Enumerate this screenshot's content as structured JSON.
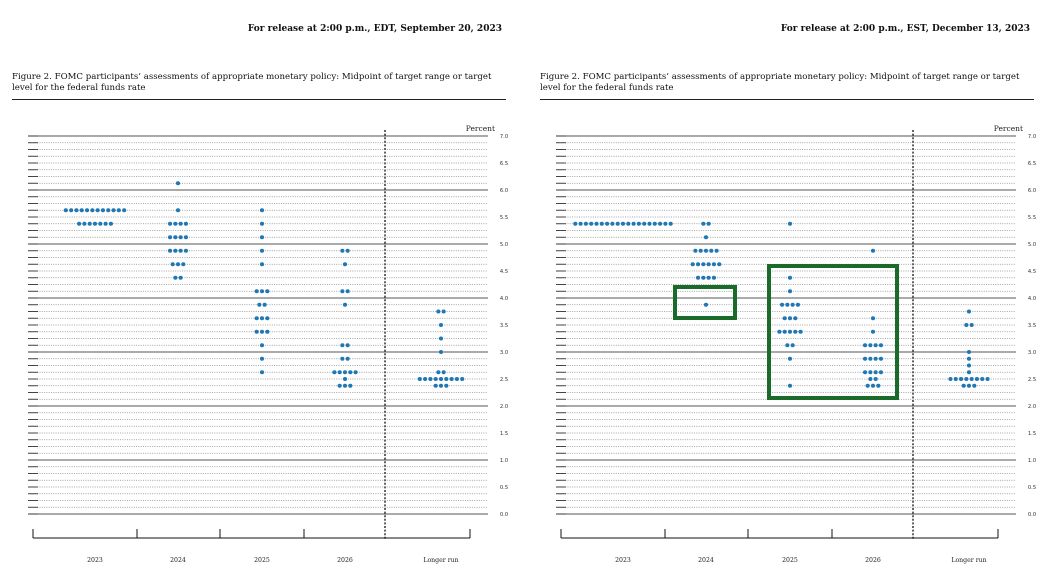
{
  "chart_data": [
    {
      "type": "scatter",
      "release_line": "For release at 2:00 p.m., EDT, September 20, 2023",
      "title": "Figure 2.  FOMC participants’ assessments of appropriate monetary policy: Midpoint of target range or target level for the federal funds rate",
      "ylabel": "Percent",
      "ylim": [
        0,
        7
      ],
      "y_ticks": [
        "0.0",
        "0.5",
        "1.0",
        "1.5",
        "2.0",
        "2.5",
        "3.0",
        "3.5",
        "4.0",
        "4.5",
        "5.0",
        "5.5",
        "6.0",
        "6.5",
        "7.0"
      ],
      "categories": [
        "2023",
        "2024",
        "2025",
        "2026",
        "Longer run"
      ],
      "dot_color": "#1f77b4",
      "dots": [
        {
          "category": "2023",
          "points": [
            {
              "y": 5.625,
              "count": 12
            },
            {
              "y": 5.375,
              "count": 7
            }
          ]
        },
        {
          "category": "2024",
          "points": [
            {
              "y": 6.125,
              "count": 1
            },
            {
              "y": 5.625,
              "count": 1
            },
            {
              "y": 5.375,
              "count": 4
            },
            {
              "y": 5.125,
              "count": 4
            },
            {
              "y": 4.875,
              "count": 4
            },
            {
              "y": 4.625,
              "count": 3
            },
            {
              "y": 4.375,
              "count": 2
            }
          ]
        },
        {
          "category": "2025",
          "points": [
            {
              "y": 5.625,
              "count": 1
            },
            {
              "y": 5.375,
              "count": 1
            },
            {
              "y": 5.125,
              "count": 1
            },
            {
              "y": 4.875,
              "count": 1
            },
            {
              "y": 4.625,
              "count": 1
            },
            {
              "y": 4.125,
              "count": 3
            },
            {
              "y": 3.875,
              "count": 2
            },
            {
              "y": 3.625,
              "count": 3
            },
            {
              "y": 3.375,
              "count": 3
            },
            {
              "y": 3.125,
              "count": 1
            },
            {
              "y": 2.875,
              "count": 1
            },
            {
              "y": 2.625,
              "count": 1
            }
          ]
        },
        {
          "category": "2026",
          "points": [
            {
              "y": 4.875,
              "count": 2
            },
            {
              "y": 4.625,
              "count": 1
            },
            {
              "y": 4.125,
              "count": 2
            },
            {
              "y": 3.875,
              "count": 1
            },
            {
              "y": 3.125,
              "count": 2
            },
            {
              "y": 2.875,
              "count": 2
            },
            {
              "y": 2.625,
              "count": 5
            },
            {
              "y": 2.5,
              "count": 1
            },
            {
              "y": 2.375,
              "count": 3
            }
          ]
        },
        {
          "category": "Longer run",
          "points": [
            {
              "y": 3.75,
              "count": 2
            },
            {
              "y": 3.5,
              "count": 1
            },
            {
              "y": 3.25,
              "count": 1
            },
            {
              "y": 3.0,
              "count": 1
            },
            {
              "y": 2.625,
              "count": 2
            },
            {
              "y": 2.5,
              "count": 9
            },
            {
              "y": 2.375,
              "count": 3
            }
          ]
        }
      ]
    },
    {
      "type": "scatter",
      "release_line": "For release at 2:00 p.m., EST, December 13, 2023",
      "title": "Figure 2.  FOMC participants’ assessments of appropriate monetary policy: Midpoint of target range or target level for the federal funds rate",
      "ylabel": "Percent",
      "ylim": [
        0,
        7
      ],
      "y_ticks": [
        "0.0",
        "0.5",
        "1.0",
        "1.5",
        "2.0",
        "2.5",
        "3.0",
        "3.5",
        "4.0",
        "4.5",
        "5.0",
        "5.5",
        "6.0",
        "6.5",
        "7.0"
      ],
      "categories": [
        "2023",
        "2024",
        "2025",
        "2026",
        "Longer run"
      ],
      "dot_color": "#1f77b4",
      "highlight_color": "#1a6b2a",
      "dots": [
        {
          "category": "2023",
          "points": [
            {
              "y": 5.375,
              "count": 19
            }
          ]
        },
        {
          "category": "2024",
          "points": [
            {
              "y": 5.375,
              "count": 2
            },
            {
              "y": 5.125,
              "count": 1
            },
            {
              "y": 4.875,
              "count": 5
            },
            {
              "y": 4.625,
              "count": 6
            },
            {
              "y": 4.375,
              "count": 4
            },
            {
              "y": 3.875,
              "count": 1
            }
          ]
        },
        {
          "category": "2025",
          "points": [
            {
              "y": 5.375,
              "count": 1
            },
            {
              "y": 4.375,
              "count": 1
            },
            {
              "y": 4.125,
              "count": 1
            },
            {
              "y": 3.875,
              "count": 4
            },
            {
              "y": 3.625,
              "count": 3
            },
            {
              "y": 3.375,
              "count": 5
            },
            {
              "y": 3.125,
              "count": 2
            },
            {
              "y": 2.875,
              "count": 1
            },
            {
              "y": 2.375,
              "count": 1
            }
          ]
        },
        {
          "category": "2026",
          "points": [
            {
              "y": 4.875,
              "count": 1
            },
            {
              "y": 3.625,
              "count": 1
            },
            {
              "y": 3.375,
              "count": 1
            },
            {
              "y": 3.125,
              "count": 4
            },
            {
              "y": 2.875,
              "count": 4
            },
            {
              "y": 2.625,
              "count": 4
            },
            {
              "y": 2.5,
              "count": 2
            },
            {
              "y": 2.375,
              "count": 3
            }
          ]
        },
        {
          "category": "Longer run",
          "points": [
            {
              "y": 3.75,
              "count": 1
            },
            {
              "y": 3.5,
              "count": 2
            },
            {
              "y": 3.0,
              "count": 1
            },
            {
              "y": 2.875,
              "count": 1
            },
            {
              "y": 2.75,
              "count": 1
            },
            {
              "y": 2.625,
              "count": 1
            },
            {
              "y": 2.5,
              "count": 8
            },
            {
              "y": 2.375,
              "count": 3
            }
          ]
        }
      ]
    }
  ]
}
